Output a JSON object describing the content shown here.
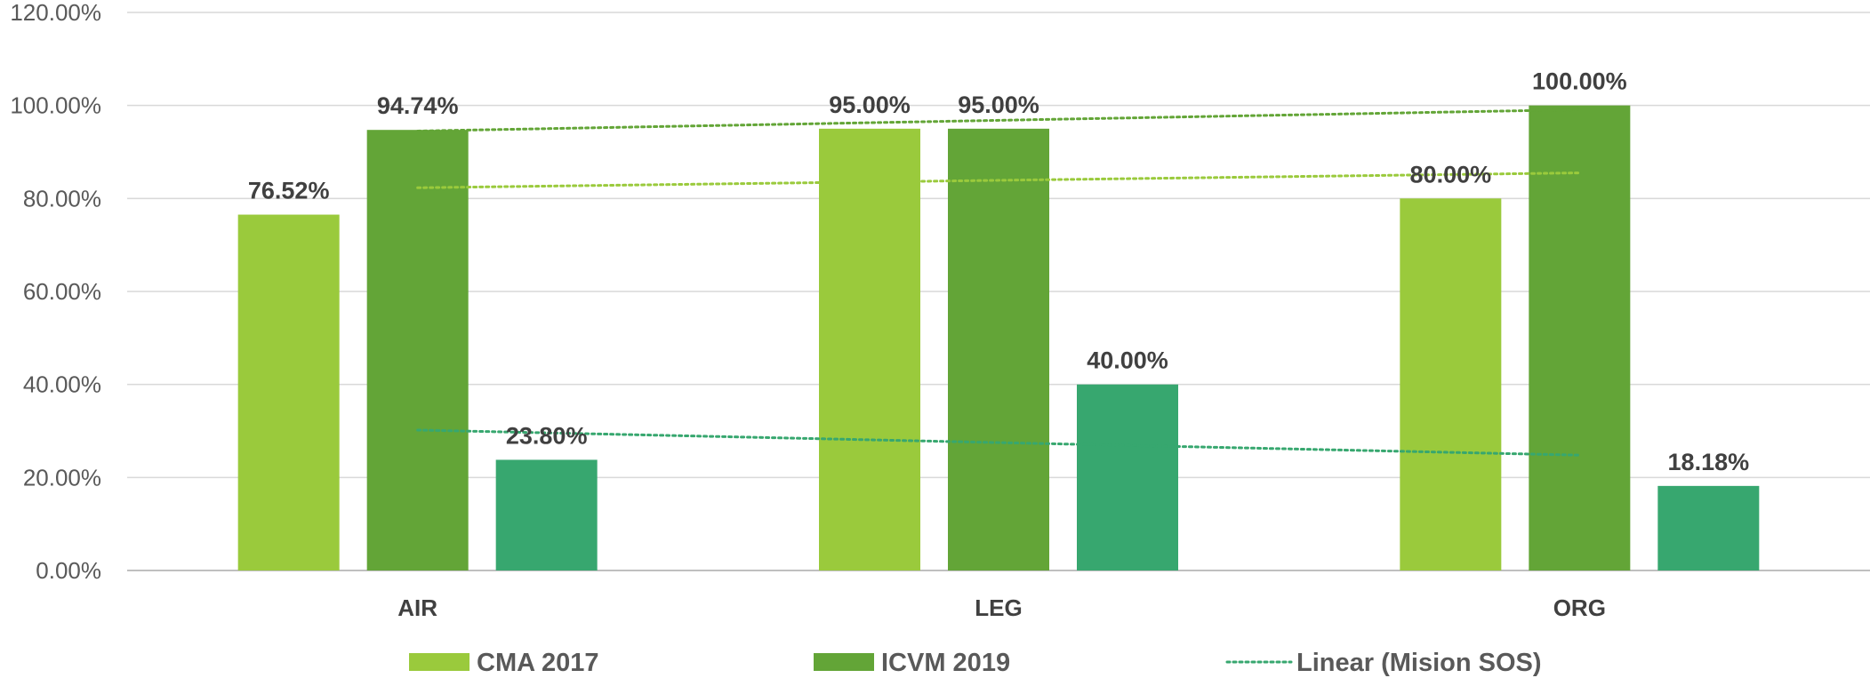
{
  "chart_data": {
    "type": "bar",
    "categories": [
      "AIR",
      "LEG",
      "ORG"
    ],
    "series": [
      {
        "name": "CMA 2017",
        "color": "#9ACA3C",
        "values": [
          76.52,
          95.0,
          80.0
        ],
        "labels": [
          "76.52%",
          "95.00%",
          "80.00%"
        ]
      },
      {
        "name": "ICVM 2019",
        "color": "#63A537",
        "values": [
          94.74,
          95.0,
          100.0
        ],
        "labels": [
          "94.74%",
          "95.00%",
          "100.00%"
        ]
      },
      {
        "name": "",
        "color": "#37A76F",
        "values": [
          23.8,
          40.0,
          18.18
        ],
        "labels": [
          "23.80%",
          "40.00%",
          "18.18%"
        ]
      }
    ],
    "trendlines": [
      {
        "series": 0,
        "color": "#9ACA3C",
        "values": [
          82.3,
          85.5
        ]
      },
      {
        "series": 1,
        "color": "#63A537",
        "values": [
          94.5,
          99.1
        ]
      },
      {
        "series": 2,
        "color": "#37A76F",
        "values": [
          30.2,
          24.8
        ]
      }
    ],
    "ylim": [
      0,
      120
    ],
    "y_ticks": [
      "0.00%",
      "20.00%",
      "40.00%",
      "60.00%",
      "80.00%",
      "100.00%",
      "120.00%"
    ],
    "grid": true,
    "legend_position": "bottom",
    "legend": [
      {
        "label": "CMA 2017",
        "kind": "box",
        "color": "#9ACA3C"
      },
      {
        "label": "ICVM 2019",
        "kind": "box",
        "color": "#63A537"
      },
      {
        "label": "Linear (Mision SOS)",
        "kind": "dotted-line",
        "color": "#37A76F"
      }
    ]
  }
}
